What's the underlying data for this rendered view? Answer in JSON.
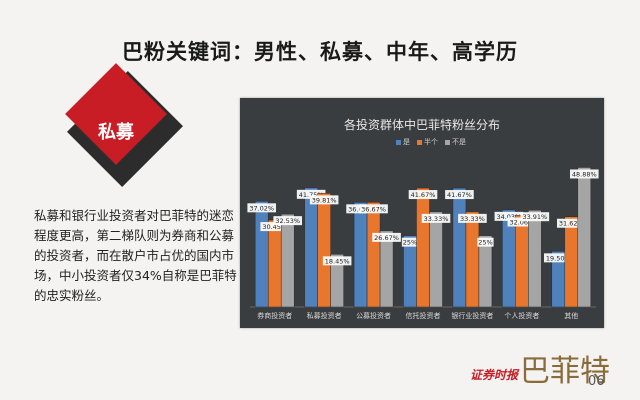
{
  "slide": {
    "title": "巴粉关键词：男性、私募、中年、高学历",
    "tag": "私募",
    "body": "私募和银行业投资者对巴菲特的迷恋程度更高，第二梯队则为券商和公募的投资者，而在散户市占优的国内市场，中小投资者仅34%自称是巴菲特的忠实粉丝。",
    "logo_left": "证券时报",
    "logo_right": "巴菲特",
    "page_number": "06"
  },
  "chart_data": {
    "type": "bar",
    "title": "各投资群体中巴菲特粉丝分布",
    "categories": [
      "券商投资者",
      "私募投资者",
      "公募投资者",
      "信托投资者",
      "银行业投资者",
      "个人投资者",
      "其他"
    ],
    "series": [
      {
        "name": "是",
        "color": "#4f81bd",
        "values": [
          37.02,
          41.75,
          36.67,
          25.0,
          41.67,
          34.03,
          19.5
        ],
        "labels": [
          "37.02%",
          "41.75%",
          "36.67%",
          "25%",
          "41.67%",
          "34.03%",
          "19.50%"
        ]
      },
      {
        "name": "半个",
        "color": "#e8762d",
        "values": [
          30.45,
          39.81,
          36.67,
          41.67,
          33.33,
          32.06,
          31.62
        ],
        "labels": [
          "30.45%",
          "39.81%",
          "36.67%",
          "41.67%",
          "33.33%",
          "32.06%",
          "31.62%"
        ]
      },
      {
        "name": "不是",
        "color": "#a5a5a5",
        "values": [
          32.53,
          18.45,
          26.67,
          33.33,
          25.0,
          33.91,
          48.88
        ],
        "labels": [
          "32.53%",
          "18.45%",
          "26.67%",
          "33.33%",
          "25%",
          "33.91%",
          "48.88%"
        ]
      }
    ],
    "ylim": [
      0,
      55
    ],
    "legend": "top"
  }
}
